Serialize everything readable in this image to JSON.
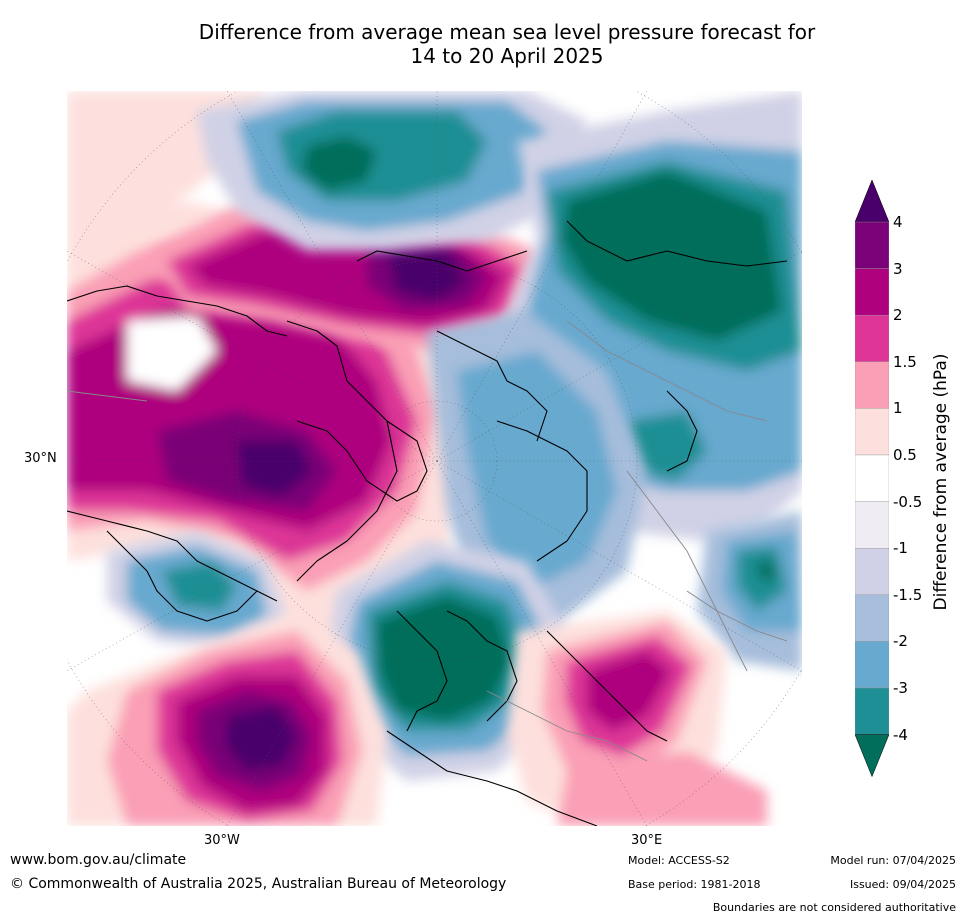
{
  "title": {
    "line1": "Difference from average mean sea level pressure forecast for",
    "line2": "14 to 20 April 2025"
  },
  "map": {
    "projection": "north-polar-stereographic",
    "labels": {
      "lat_30n": "30°N",
      "lon_30w": "30°W",
      "lon_30e": "30°E"
    },
    "palette": {
      "lt_neg4": "#006e5a",
      "neg4_neg3": "#1e8f94",
      "neg3_neg2": "#67a9cf",
      "neg2_neg1_5": "#a6bddb",
      "neg1_5_neg1": "#d0d1e6",
      "neg1_neg0_5": "#f0ecf4",
      "neg0_5_0_5": "#ffffff",
      "p0_5_1": "#fde0dd",
      "p1_1_5": "#fa9fb5",
      "p1_5_2": "#dd3497",
      "p2_3": "#ae017e",
      "p3_4": "#7a0177",
      "gt_4": "#49006a"
    }
  },
  "colorbar": {
    "title": "Difference from average (hPa)",
    "ticks": [
      "4",
      "3",
      "2",
      "1.5",
      "1",
      "0.5",
      "-0.5",
      "-1",
      "-1.5",
      "-2",
      "-3",
      "-4"
    ],
    "colors": [
      "#49006a",
      "#7a0177",
      "#ae017e",
      "#dd3497",
      "#fa9fb5",
      "#fde0dd",
      "#ffffff",
      "#f0ecf4",
      "#d0d1e6",
      "#a6bddb",
      "#67a9cf",
      "#1e8f94",
      "#006e5a"
    ]
  },
  "footer": {
    "url": "www.bom.gov.au/climate",
    "copyright": "© Commonwealth of Australia 2025, Australian Bureau of Meteorology",
    "model": "Model: ACCESS-S2",
    "base_period": "Base period: 1981-2018",
    "model_run": "Model run: 07/04/2025",
    "issued": "Issued: 09/04/2025",
    "disclaimer": "Boundaries are not considered authoritative"
  }
}
